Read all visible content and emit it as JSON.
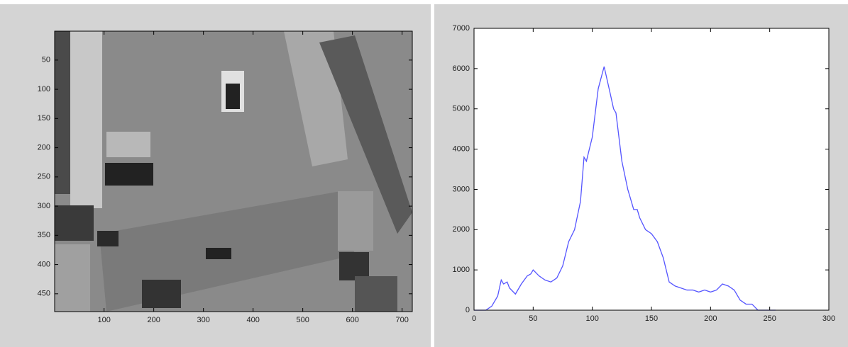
{
  "chart_data": [
    {
      "type": "image",
      "colormap": "gray",
      "y_reversed": true,
      "xlim": [
        0.5,
        720.5
      ],
      "xticks": [
        100,
        200,
        300,
        400,
        500,
        600,
        700
      ],
      "ylim": [
        0.5,
        480.5
      ],
      "yticks": [
        50,
        100,
        150,
        200,
        250,
        300,
        350,
        400,
        450
      ]
    },
    {
      "type": "line",
      "x": [
        0,
        5,
        10,
        15,
        20,
        23,
        25,
        28,
        30,
        35,
        40,
        45,
        48,
        50,
        55,
        60,
        65,
        70,
        75,
        80,
        85,
        90,
        93,
        95,
        100,
        105,
        110,
        115,
        118,
        120,
        125,
        130,
        135,
        138,
        140,
        145,
        150,
        155,
        160,
        165,
        170,
        175,
        180,
        185,
        190,
        195,
        200,
        205,
        210,
        215,
        220,
        225,
        230,
        235,
        240,
        245,
        250,
        255
      ],
      "series": [
        {
          "color": "#5555ff",
          "values": [
            0,
            0,
            0,
            100,
            350,
            750,
            650,
            700,
            550,
            400,
            650,
            850,
            900,
            1000,
            850,
            750,
            700,
            800,
            1100,
            1700,
            2000,
            2700,
            3800,
            3700,
            4300,
            5500,
            6050,
            5400,
            5000,
            4900,
            3700,
            3000,
            2500,
            2500,
            2300,
            2000,
            1900,
            1700,
            1300,
            700,
            600,
            550,
            500,
            500,
            450,
            500,
            450,
            500,
            650,
            600,
            500,
            250,
            150,
            150,
            0,
            0,
            0,
            0
          ]
        }
      ],
      "xlim": [
        0,
        300
      ],
      "xticks": [
        0,
        50,
        100,
        150,
        200,
        250,
        300
      ],
      "ylim": [
        0,
        7000
      ],
      "yticks": [
        0,
        1000,
        2000,
        3000,
        4000,
        5000,
        6000,
        7000
      ]
    }
  ]
}
